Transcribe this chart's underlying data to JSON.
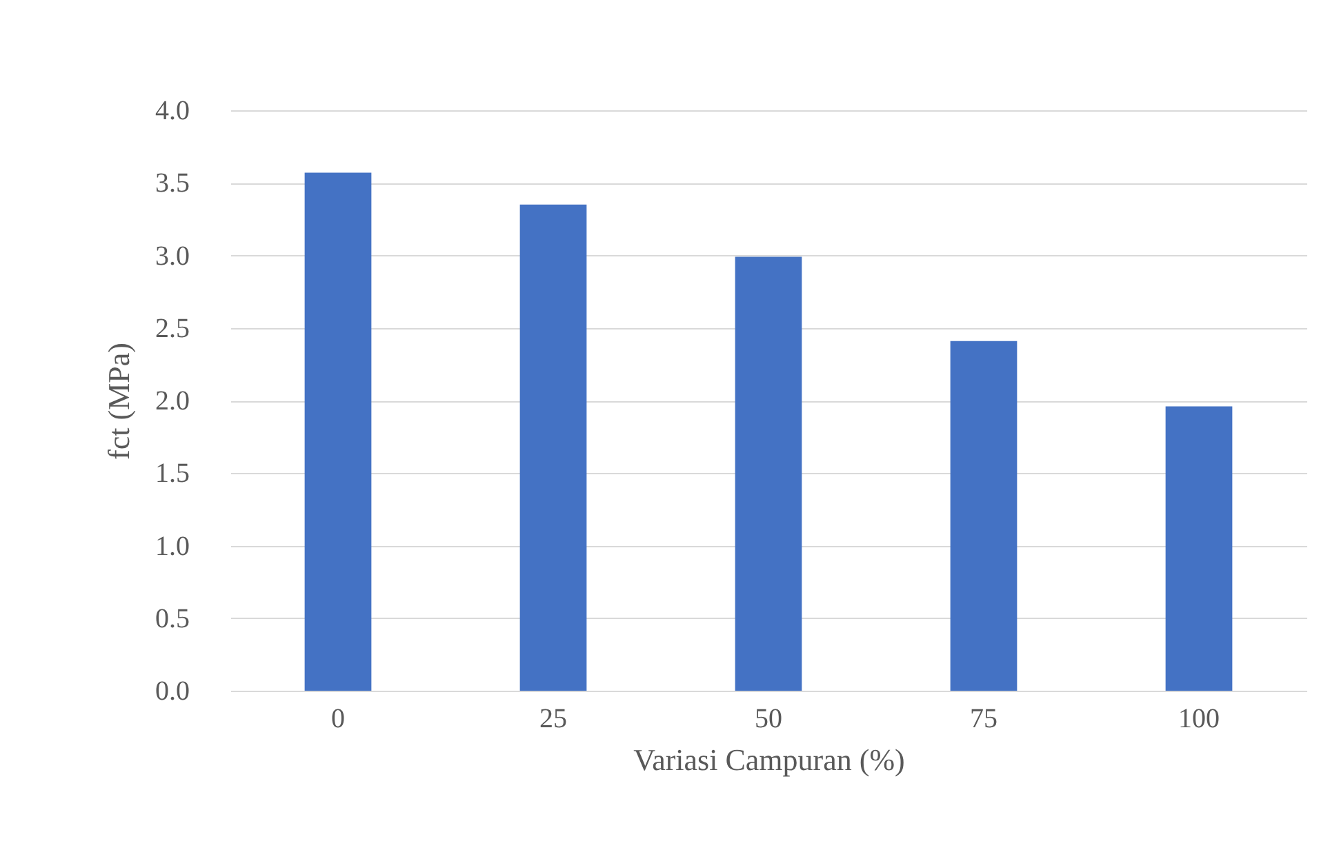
{
  "chart_data": {
    "type": "bar",
    "xlabel": "Variasi Campuran (%)",
    "ylabel": "fct (MPa)",
    "categories": [
      "0",
      "25",
      "50",
      "75",
      "100"
    ],
    "values": [
      3.57,
      3.35,
      2.99,
      2.41,
      1.96
    ],
    "color": "#4472c4",
    "ylim": [
      0,
      4.0
    ],
    "yticks": [
      {
        "value": 0,
        "label": "0.0"
      },
      {
        "value": 0.5,
        "label": "0.5"
      },
      {
        "value": 1,
        "label": "1.0"
      },
      {
        "value": 1.5,
        "label": "1.5"
      },
      {
        "value": 2,
        "label": "2.0"
      },
      {
        "value": 2.5,
        "label": "2.5"
      },
      {
        "value": 3,
        "label": "3.0"
      },
      {
        "value": 3.5,
        "label": "3.5"
      },
      {
        "value": 4,
        "label": "4.0"
      }
    ],
    "grid": "y"
  }
}
